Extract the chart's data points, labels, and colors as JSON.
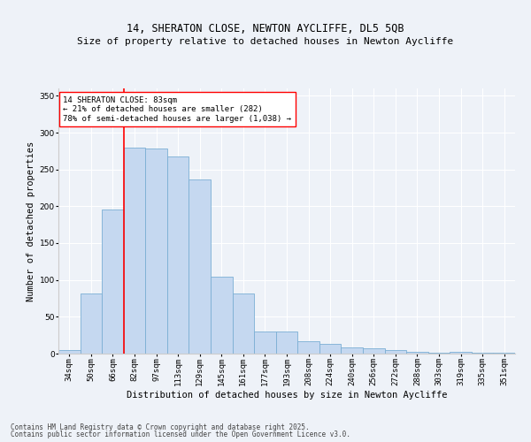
{
  "title1": "14, SHERATON CLOSE, NEWTON AYCLIFFE, DL5 5QB",
  "title2": "Size of property relative to detached houses in Newton Aycliffe",
  "xlabel": "Distribution of detached houses by size in Newton Aycliffe",
  "ylabel": "Number of detached properties",
  "categories": [
    "34sqm",
    "50sqm",
    "66sqm",
    "82sqm",
    "97sqm",
    "113sqm",
    "129sqm",
    "145sqm",
    "161sqm",
    "177sqm",
    "193sqm",
    "208sqm",
    "224sqm",
    "240sqm",
    "256sqm",
    "272sqm",
    "288sqm",
    "303sqm",
    "319sqm",
    "335sqm",
    "351sqm"
  ],
  "values": [
    5,
    82,
    196,
    280,
    278,
    268,
    237,
    105,
    82,
    30,
    30,
    17,
    13,
    8,
    7,
    5,
    3,
    1,
    2,
    1,
    1
  ],
  "bar_color": "#c5d8f0",
  "bar_edge_color": "#7bafd4",
  "red_line_index": 3,
  "annotation_title": "14 SHERATON CLOSE: 83sqm",
  "annotation_line1": "← 21% of detached houses are smaller (282)",
  "annotation_line2": "78% of semi-detached houses are larger (1,038) →",
  "ylim": [
    0,
    360
  ],
  "yticks": [
    0,
    50,
    100,
    150,
    200,
    250,
    300,
    350
  ],
  "footer1": "Contains HM Land Registry data © Crown copyright and database right 2025.",
  "footer2": "Contains public sector information licensed under the Open Government Licence v3.0.",
  "bg_color": "#eef2f8",
  "plot_bg_color": "#eef2f8",
  "grid_color": "#ffffff",
  "title_fontsize": 8.5,
  "label_fontsize": 7.5,
  "tick_fontsize": 6.5,
  "annot_fontsize": 6.5,
  "footer_fontsize": 5.5
}
